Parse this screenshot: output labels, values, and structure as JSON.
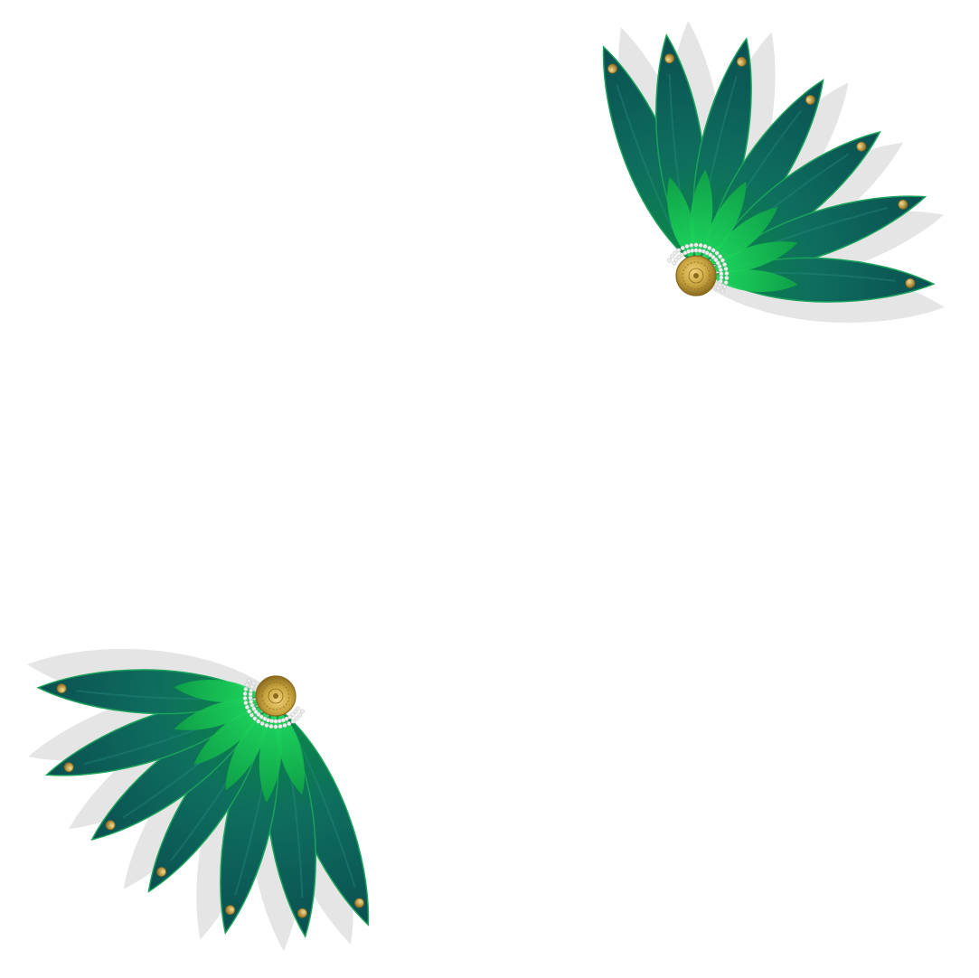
{
  "background_color": "#ffffff",
  "ornaments": [
    {
      "name": "leaf-fan-top-right",
      "rotation_deg": 0
    },
    {
      "name": "leaf-fan-bottom-left",
      "rotation_deg": 180
    }
  ],
  "leaf_count": 7,
  "colors": {
    "leaf_dark": "#0b4f52",
    "leaf_mid": "#0e6e5e",
    "leaf_green": "#0b8a45",
    "leaf_edge": "#1aa25a",
    "inner_leaf": "#19d04f",
    "shadow": "#dcdcdc",
    "gold": "#c9a640",
    "gold_dark": "#8a6a1e",
    "pearl": "#eeeeee"
  }
}
